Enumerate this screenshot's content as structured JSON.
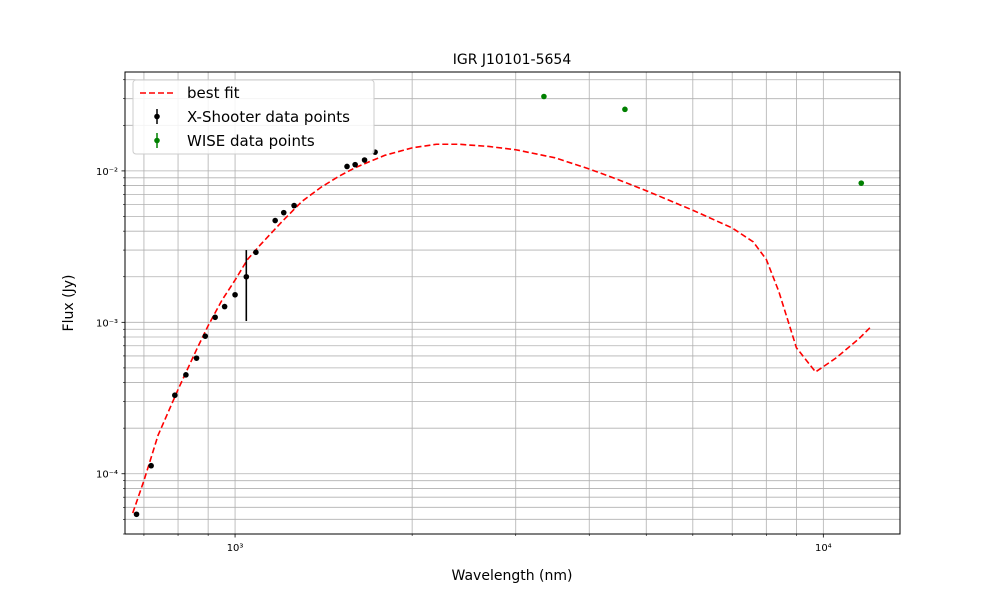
{
  "chart_data": {
    "type": "scatter",
    "title": "IGR J10101-5654",
    "xlabel": "Wavelength (nm)",
    "ylabel": "Flux (Jy)",
    "x_scale": "log",
    "y_scale": "log",
    "xlim": [
      650,
      13500
    ],
    "ylim": [
      4e-05,
      0.045
    ],
    "grid": "both",
    "legend_position": "top-left",
    "x_tick_labels": [
      {
        "value": 1000,
        "label": "10³"
      },
      {
        "value": 10000,
        "label": "10⁴"
      }
    ],
    "y_tick_labels": [
      {
        "value": 0.0001,
        "label": "10⁻⁴"
      },
      {
        "value": 0.001,
        "label": "10⁻³"
      },
      {
        "value": 0.01,
        "label": "10⁻²"
      }
    ],
    "series": [
      {
        "name": "best fit",
        "kind": "line",
        "style": "dashed",
        "color": "#ff0000",
        "x": [
          670,
          700,
          740,
          800,
          860,
          900,
          950,
          1000,
          1050,
          1100,
          1200,
          1300,
          1400,
          1500,
          1600,
          1700,
          1800,
          2000,
          2200,
          2400,
          2700,
          3000,
          3500,
          4000,
          4500,
          5000,
          6000,
          7000,
          7600,
          8000,
          8400,
          9000,
          9700,
          10500,
          11500,
          12000
        ],
        "y": [
          5.5e-05,
          9e-05,
          0.00018,
          0.00036,
          0.00066,
          0.00095,
          0.0014,
          0.0019,
          0.0026,
          0.0032,
          0.0046,
          0.0063,
          0.0078,
          0.0092,
          0.0105,
          0.0116,
          0.0127,
          0.0142,
          0.015,
          0.015,
          0.0145,
          0.0138,
          0.0122,
          0.0103,
          0.0087,
          0.0074,
          0.0055,
          0.0042,
          0.0034,
          0.0026,
          0.0016,
          0.00068,
          0.00047,
          0.00058,
          0.00078,
          0.00092
        ]
      },
      {
        "name": "X-Shooter data points",
        "kind": "errorbar",
        "color": "#000000",
        "x": [
          680,
          720,
          790,
          825,
          860,
          890,
          925,
          960,
          1000,
          1045,
          1085,
          1170,
          1210,
          1260,
          1550,
          1600,
          1660,
          1730
        ],
        "y": [
          5.4e-05,
          0.000113,
          0.00033,
          0.00045,
          0.00058,
          0.00081,
          0.00108,
          0.00127,
          0.00152,
          0.002,
          0.0029,
          0.0047,
          0.0053,
          0.0059,
          0.0107,
          0.011,
          0.0118,
          0.0133
        ],
        "yerr_low": [
          0,
          0,
          0,
          0,
          0,
          0,
          0,
          0,
          0,
          0.00098,
          0,
          0,
          0,
          0,
          0,
          0,
          0,
          0
        ],
        "yerr_high": [
          0,
          0,
          0,
          0,
          0,
          0,
          0,
          0,
          0,
          0.001,
          0,
          0,
          0,
          0,
          0,
          0,
          0,
          0
        ]
      },
      {
        "name": "WISE data points",
        "kind": "errorbar",
        "color": "#008000",
        "x": [
          3350,
          4600,
          11600
        ],
        "y": [
          0.031,
          0.0255,
          0.0083
        ],
        "yerr_low": [
          0,
          0,
          0
        ],
        "yerr_high": [
          0,
          0,
          0
        ]
      }
    ]
  }
}
